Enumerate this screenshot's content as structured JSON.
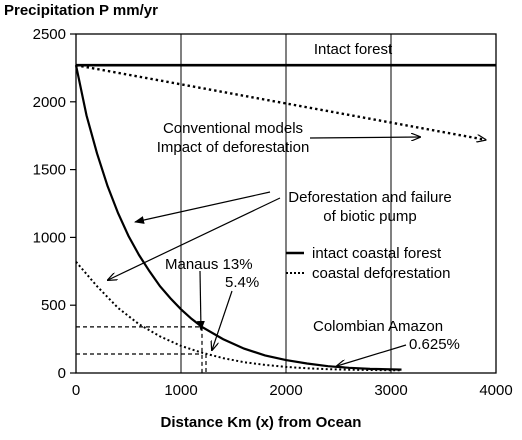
{
  "chart_data": {
    "type": "line",
    "ylabel": "Precipitation P mm/yr",
    "xlabel": "Distance Km (x) from Ocean",
    "xlim": [
      0,
      4000
    ],
    "ylim": [
      0,
      2500
    ],
    "x_ticks": [
      "0",
      "1000",
      "2000",
      "3000",
      "4000"
    ],
    "y_ticks": [
      "0",
      "500",
      "1000",
      "1500",
      "2000",
      "2500"
    ],
    "grid": "vertical",
    "series": [
      {
        "name": "Intact forest",
        "style": "solid-thick",
        "x": [
          0,
          4000
        ],
        "y": [
          2270,
          2270
        ]
      },
      {
        "name": "Conventional models Impact of deforestation",
        "style": "dotted",
        "x": [
          0,
          3900
        ],
        "y": [
          2270,
          1720
        ]
      },
      {
        "name": "intact coastal forest",
        "style": "solid",
        "x": [
          0,
          100,
          200,
          300,
          400,
          500,
          600,
          700,
          800,
          900,
          1000,
          1100,
          1200,
          1400,
          1600,
          1800,
          2000,
          2200,
          2400,
          2600,
          2800,
          3000,
          3100
        ],
        "y": [
          2270,
          1900,
          1620,
          1380,
          1180,
          1010,
          870,
          750,
          640,
          550,
          470,
          400,
          340,
          250,
          180,
          130,
          95,
          70,
          50,
          38,
          30,
          27,
          25
        ]
      },
      {
        "name": "coastal deforestation",
        "style": "dotted",
        "x": [
          0,
          200,
          400,
          600,
          800,
          1000,
          1200,
          1400,
          1600,
          1800,
          2000,
          2200,
          2400,
          2600,
          2800,
          3000,
          3100
        ],
        "y": [
          820,
          640,
          480,
          360,
          270,
          200,
          150,
          110,
          80,
          60,
          45,
          35,
          28,
          24,
          22,
          21,
          20
        ]
      }
    ],
    "legend": {
      "position": "middle-right",
      "entries": [
        {
          "label": "intact coastal forest",
          "style": "solid"
        },
        {
          "label": "coastal deforestation",
          "style": "dotted"
        }
      ]
    },
    "annotations": {
      "intact_forest": "Intact forest",
      "conventional_line1": "Conventional models",
      "conventional_line2": "Impact of deforestation",
      "biotic_line1": "Deforestation and failure",
      "biotic_line2": "of biotic pump",
      "manaus": "Manaus 13%",
      "manaus_pct": "5.4%",
      "colombian": "Colombian Amazon",
      "colombian_pct": "0.625%"
    },
    "reference_lines": [
      {
        "x": 1200,
        "y": 340
      },
      {
        "x": 1200,
        "y": 140
      }
    ]
  }
}
